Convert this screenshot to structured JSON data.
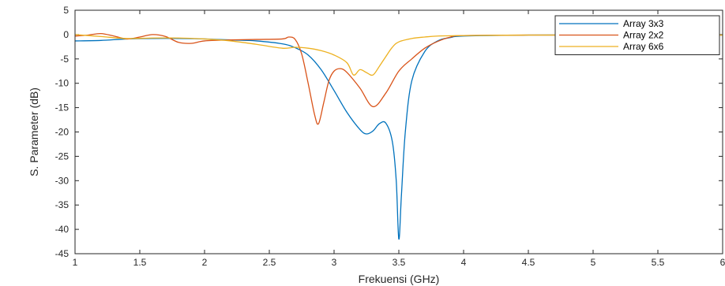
{
  "chart_data": {
    "type": "line",
    "title": "",
    "xlabel": "Frekuensi (GHz)",
    "ylabel": "S. Parameter (dB)",
    "xlim": [
      1,
      6
    ],
    "ylim": [
      -45,
      5
    ],
    "xticks": [
      1,
      1.5,
      2,
      2.5,
      3,
      3.5,
      4,
      4.5,
      5,
      5.5,
      6
    ],
    "yticks": [
      5,
      0,
      -5,
      -10,
      -15,
      -20,
      -25,
      -30,
      -35,
      -40,
      -45
    ],
    "grid": false,
    "legend_position": "top-right",
    "series": [
      {
        "name": "Array 3x3",
        "color": "#0072BD",
        "x": [
          1.0,
          1.2,
          1.4,
          1.6,
          1.8,
          2.0,
          2.2,
          2.4,
          2.6,
          2.7,
          2.8,
          2.9,
          3.0,
          3.1,
          3.2,
          3.25,
          3.3,
          3.35,
          3.4,
          3.45,
          3.48,
          3.5,
          3.52,
          3.55,
          3.6,
          3.7,
          3.8,
          3.9,
          4.0,
          4.5,
          5.0,
          5.5,
          6.0
        ],
        "y": [
          -1.3,
          -1.2,
          -0.9,
          -0.8,
          -0.8,
          -0.9,
          -1.1,
          -1.3,
          -1.9,
          -2.7,
          -4.2,
          -7.2,
          -11.5,
          -16.0,
          -19.5,
          -20.4,
          -19.8,
          -18.3,
          -18.2,
          -22.0,
          -30.0,
          -42.0,
          -33.0,
          -20.0,
          -9.5,
          -3.5,
          -1.3,
          -0.6,
          -0.3,
          -0.1,
          -0.1,
          -0.1,
          -0.1
        ]
      },
      {
        "name": "Array 2x2",
        "color": "#D95319",
        "x": [
          1.0,
          1.1,
          1.2,
          1.3,
          1.4,
          1.5,
          1.6,
          1.7,
          1.8,
          1.9,
          2.0,
          2.2,
          2.4,
          2.6,
          2.65,
          2.7,
          2.75,
          2.8,
          2.85,
          2.88,
          2.92,
          2.96,
          3.0,
          3.05,
          3.1,
          3.2,
          3.3,
          3.4,
          3.5,
          3.6,
          3.7,
          3.8,
          3.9,
          4.0,
          4.5,
          5.0,
          5.5,
          6.0
        ],
        "y": [
          -0.3,
          -0.1,
          0.2,
          -0.3,
          -0.9,
          -0.5,
          0.0,
          -0.4,
          -1.6,
          -1.8,
          -1.3,
          -1.1,
          -1.0,
          -0.9,
          -0.5,
          -1.0,
          -4.0,
          -10.0,
          -16.5,
          -18.3,
          -14.0,
          -9.5,
          -7.5,
          -7.0,
          -7.8,
          -11.0,
          -14.8,
          -12.0,
          -7.5,
          -5.0,
          -2.8,
          -1.4,
          -0.5,
          -0.2,
          -0.1,
          -0.1,
          -0.1,
          -0.1
        ]
      },
      {
        "name": "Array 6x6",
        "color": "#EDB120",
        "x": [
          1.0,
          1.2,
          1.4,
          1.6,
          1.8,
          2.0,
          2.2,
          2.4,
          2.6,
          2.7,
          2.8,
          2.9,
          3.0,
          3.1,
          3.15,
          3.2,
          3.25,
          3.3,
          3.35,
          3.4,
          3.45,
          3.5,
          3.6,
          3.7,
          3.8,
          4.0,
          4.5,
          5.0,
          5.5,
          6.0
        ],
        "y": [
          0.0,
          -0.4,
          -0.8,
          -0.7,
          -0.7,
          -0.9,
          -1.3,
          -2.0,
          -2.8,
          -2.6,
          -2.8,
          -3.3,
          -4.2,
          -5.8,
          -8.3,
          -7.2,
          -7.8,
          -8.3,
          -6.5,
          -4.5,
          -2.6,
          -1.5,
          -0.8,
          -0.5,
          -0.3,
          -0.2,
          -0.1,
          -0.1,
          -0.1,
          -0.1
        ]
      }
    ]
  }
}
